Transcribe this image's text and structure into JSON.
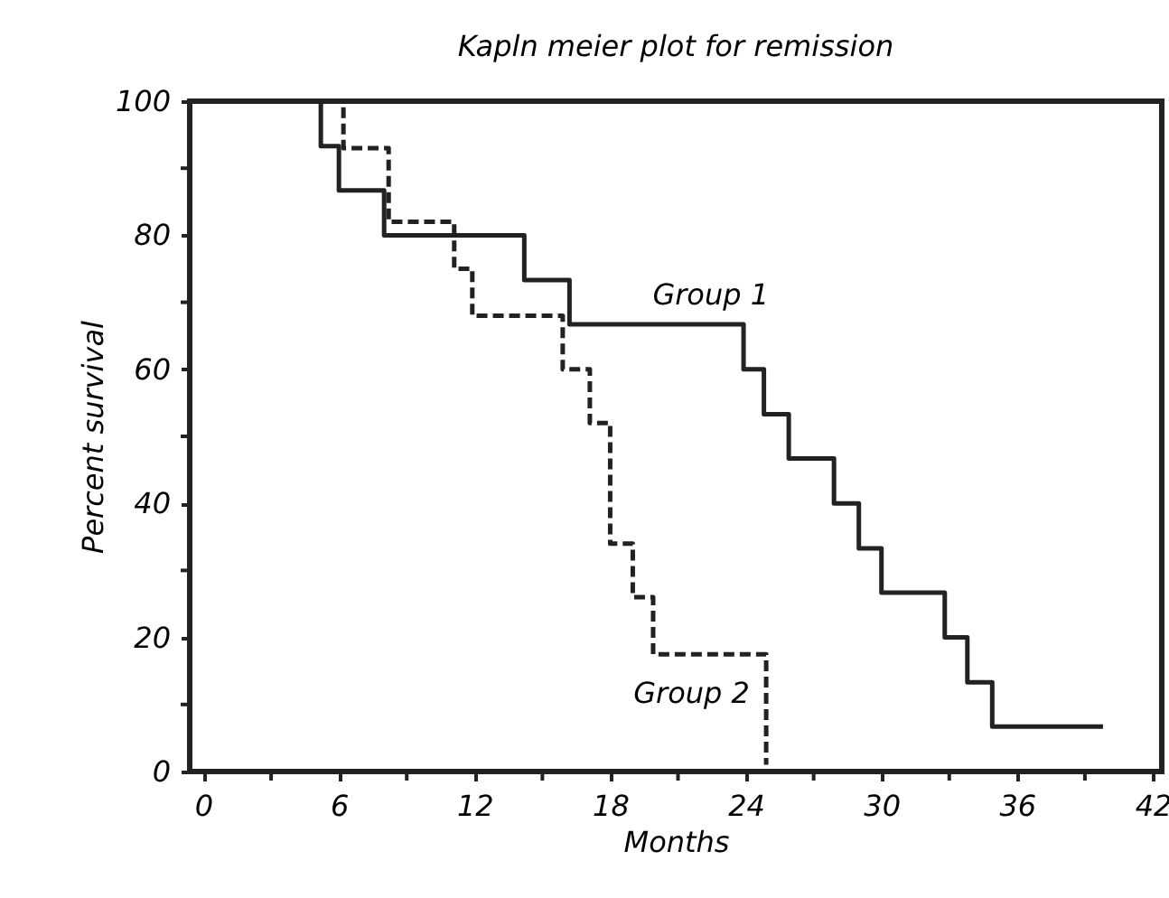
{
  "chart_data": {
    "type": "step",
    "title": "Kapln meier plot for remission",
    "xlabel": "Months",
    "ylabel": "Percent survival",
    "xlim": [
      -0.6,
      42.4
    ],
    "ylim": [
      0,
      100
    ],
    "xticks": [
      0,
      {
        "value": 3,
        "label": null
      },
      6,
      {
        "value": 9,
        "label": null
      },
      12,
      {
        "value": 15,
        "label": null
      },
      18,
      {
        "value": 21,
        "label": null
      },
      24,
      {
        "value": 27,
        "label": null
      },
      30,
      {
        "value": 33,
        "label": null
      },
      36,
      {
        "value": 39,
        "label": null
      },
      42
    ],
    "yticks": [
      0,
      {
        "value": 10,
        "label": null
      },
      20,
      {
        "value": 30,
        "label": null
      },
      40,
      {
        "value": 50,
        "label": null
      },
      60,
      {
        "value": 70,
        "label": null
      },
      80,
      {
        "value": 90,
        "label": null
      },
      100
    ],
    "grid": false,
    "legend": false,
    "marker": "none",
    "series": [
      {
        "name": "Group 1",
        "color": "#222222",
        "line_style": "solid",
        "x": [
          0,
          5.2,
          6.0,
          8.0,
          14.2,
          16.2,
          23.9,
          24.8,
          25.9,
          27.9,
          29.0,
          30.0,
          32.8,
          33.8,
          34.9,
          39.8
        ],
        "values": [
          100,
          93.3,
          86.7,
          80,
          73.3,
          66.7,
          60,
          53.3,
          46.7,
          40,
          33.3,
          26.7,
          20,
          13.3,
          6.7,
          6.7
        ]
      },
      {
        "name": "Group 2",
        "color": "#222222",
        "line_style": "dashed",
        "x": [
          0,
          6.2,
          8.2,
          11.1,
          11.9,
          15.9,
          17.1,
          18.0,
          19.0,
          19.9,
          24.9
        ],
        "values": [
          100,
          93,
          82,
          75,
          68,
          60,
          52,
          34,
          26,
          17.5,
          1
        ]
      }
    ]
  }
}
